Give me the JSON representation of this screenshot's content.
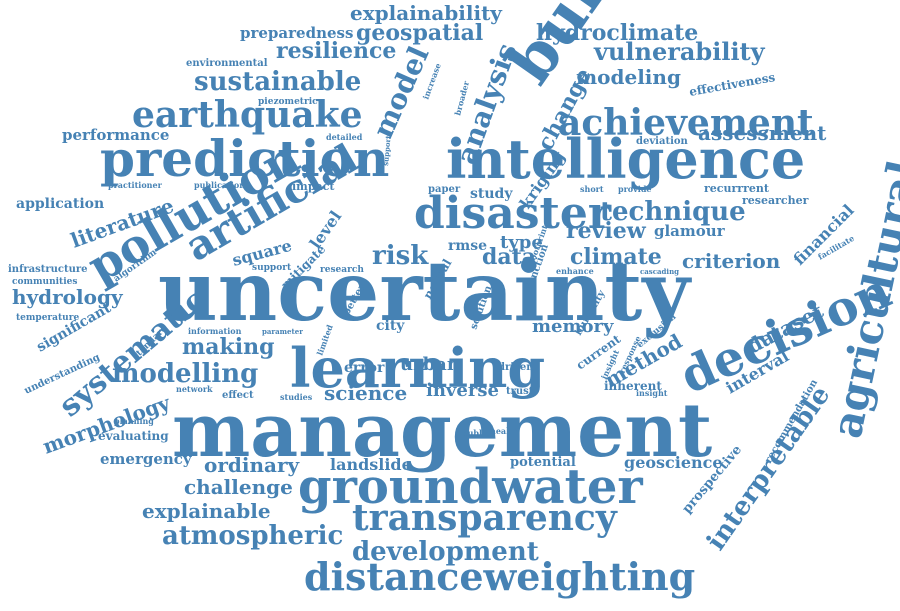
{
  "color": "#4682b4",
  "words": [
    "uncertainty",
    "management",
    "learning",
    "intelligence",
    "prediction",
    "groundwater",
    "building",
    "agricultural",
    "decision",
    "disaster",
    "distanceweighting",
    "pollution",
    "artificial",
    "transparency",
    "earthquake",
    "achievement",
    "technique",
    "systematic",
    "modelling",
    "sustainable",
    "development",
    "atmospheric",
    "interpretable",
    "analysis",
    "vulnerability",
    "explainability",
    "hydroclimate",
    "geospatial",
    "resilience",
    "model",
    "change",
    "preparedness",
    "literature",
    "review",
    "climate",
    "criterion",
    "dataset",
    "assessment",
    "making",
    "method",
    "science",
    "inverse",
    "urban",
    "modeling",
    "hydrology",
    "morphology",
    "effectiveness",
    "risk",
    "data",
    "explainable",
    "challenge",
    "ordinary",
    "landslide",
    "geoscience",
    "emergency",
    "performance",
    "application",
    "environmental",
    "piezometric",
    "financial",
    "interval",
    "memory",
    "kriging",
    "glamour",
    "prospective",
    "recommendation",
    "square",
    "level",
    "potential",
    "evaluating",
    "significant",
    "understanding",
    "infrastructure",
    "communities",
    "temperature",
    "algorithm",
    "standard",
    "practitioner",
    "publication",
    "impact",
    "detailed",
    "study",
    "paper",
    "researcher",
    "recurrrent",
    "deviation",
    "type",
    "rmse",
    "neural",
    "iran",
    "city",
    "error",
    "driven",
    "trust",
    "global",
    "account",
    "effect",
    "studies",
    "planning",
    "network",
    "information",
    "parameter",
    "direction",
    "machine",
    "inherent",
    "insight",
    "response",
    "exclusion",
    "current",
    "humidity",
    "enhance",
    "tehran",
    "cascading",
    "result",
    "facilitate",
    "function",
    "footprint",
    "essential",
    "short",
    "tabriz",
    "provide",
    "broader",
    "increase",
    "support",
    "mitigate",
    "processes",
    "research",
    "policies",
    "various",
    "accuracy",
    "future",
    "better",
    "source",
    "term",
    "limited",
    "reveal",
    "major",
    "public",
    "health",
    "foster",
    "additive",
    "domain",
    "structure",
    "solution",
    "root",
    "state",
    "crop",
    "factor",
    "area",
    "urgent",
    "system",
    "evaluate",
    "range",
    "studies",
    "offer",
    "rate",
    "loss",
    "problem",
    "natural",
    "former",
    "mean",
    "height"
  ]
}
